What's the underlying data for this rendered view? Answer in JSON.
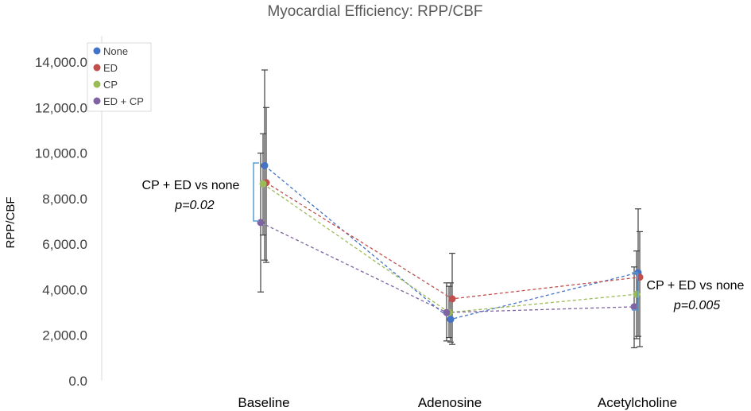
{
  "chart_data": {
    "type": "line",
    "title": "Myocardial Efficiency: RPP/CBF",
    "xlabel": "",
    "ylabel": "RPP/CBF",
    "categories": [
      "Baseline",
      "Adenosine",
      "Acetylcholine"
    ],
    "ylim": [
      0,
      14000
    ],
    "yticks": [
      "0.0",
      "2,000.0",
      "4,000.0",
      "6,000.0",
      "8,000.0",
      "10,000.0",
      "12,000.0",
      "14,000.0"
    ],
    "ytick_values": [
      0,
      2000,
      4000,
      6000,
      8000,
      10000,
      12000,
      14000
    ],
    "legend_position": "top-left",
    "series": [
      {
        "name": "None",
        "color": "#4472C4",
        "values": [
          9450,
          2700,
          4750
        ],
        "err_high": [
          13650,
          4300,
          7550
        ],
        "err_low": [
          5300,
          1700,
          1950
        ]
      },
      {
        "name": "ED",
        "color": "#C0504D",
        "values": [
          8700,
          3600,
          4550
        ],
        "err_high": [
          12000,
          5600,
          6550
        ],
        "err_low": [
          5200,
          1600,
          1500
        ]
      },
      {
        "name": "CP",
        "color": "#9BBB59",
        "values": [
          8650,
          3000,
          3800
        ],
        "err_high": [
          10850,
          4150,
          5700
        ],
        "err_low": [
          6400,
          1900,
          1850
        ]
      },
      {
        "name": "ED + CP",
        "color": "#8064A2",
        "values": [
          6950,
          3000,
          3250
        ],
        "err_high": [
          10000,
          4300,
          5000
        ],
        "err_low": [
          3900,
          1750,
          1450
        ]
      }
    ],
    "annotations": [
      {
        "text": "CP + ED vs none",
        "p_value": "p=0.02",
        "category": "Baseline"
      },
      {
        "text": "CP + ED vs none",
        "p_value": "p=0.005",
        "category": "Acetylcholine"
      }
    ]
  }
}
